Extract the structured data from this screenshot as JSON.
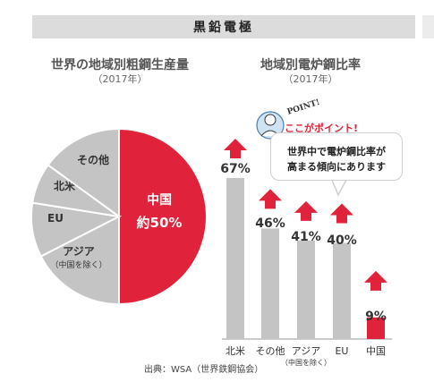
{
  "header": {
    "title": "黒鉛電極"
  },
  "left_chart": {
    "title": "世界の地域別粗鋼生産量",
    "subtitle": "（2017年）"
  },
  "right_chart": {
    "title": "地域別電炉鋼比率",
    "subtitle": "（2017年）"
  },
  "callout": {
    "badge": "POINT!",
    "title": "ここがポイント!",
    "line1": "世界中で電炉鋼比率が",
    "line2": "高まる傾向にあります"
  },
  "source": "出典：WSA（世界鉄鋼協会）",
  "colors": {
    "highlight": "#e0223a",
    "gray": "#c4c4c4",
    "dark": "#333333"
  },
  "chart_data": [
    {
      "type": "pie",
      "title": "世界の地域別粗鋼生産量",
      "subtitle": "（2017年）",
      "slices": [
        {
          "label": "中国",
          "value_text": "約50%",
          "value": 50,
          "highlight": true
        },
        {
          "label": "アジア",
          "note": "（中国を除く）",
          "value": 17.5
        },
        {
          "label": "EU",
          "value": 10
        },
        {
          "label": "北米",
          "value": 7.5
        },
        {
          "label": "その他",
          "value": 15
        }
      ]
    },
    {
      "type": "bar",
      "title": "地域別電炉鋼比率",
      "subtitle": "（2017年）",
      "categories": [
        "北米",
        "その他",
        "アジア",
        "EU",
        "中国"
      ],
      "category_notes": [
        "",
        "",
        "（中国を除く）",
        "",
        ""
      ],
      "values": [
        67,
        46,
        41,
        40,
        9
      ],
      "value_labels": [
        "67%",
        "46%",
        "41%",
        "40%",
        "9%"
      ],
      "highlight_index": 4,
      "trend": "up"
    }
  ]
}
